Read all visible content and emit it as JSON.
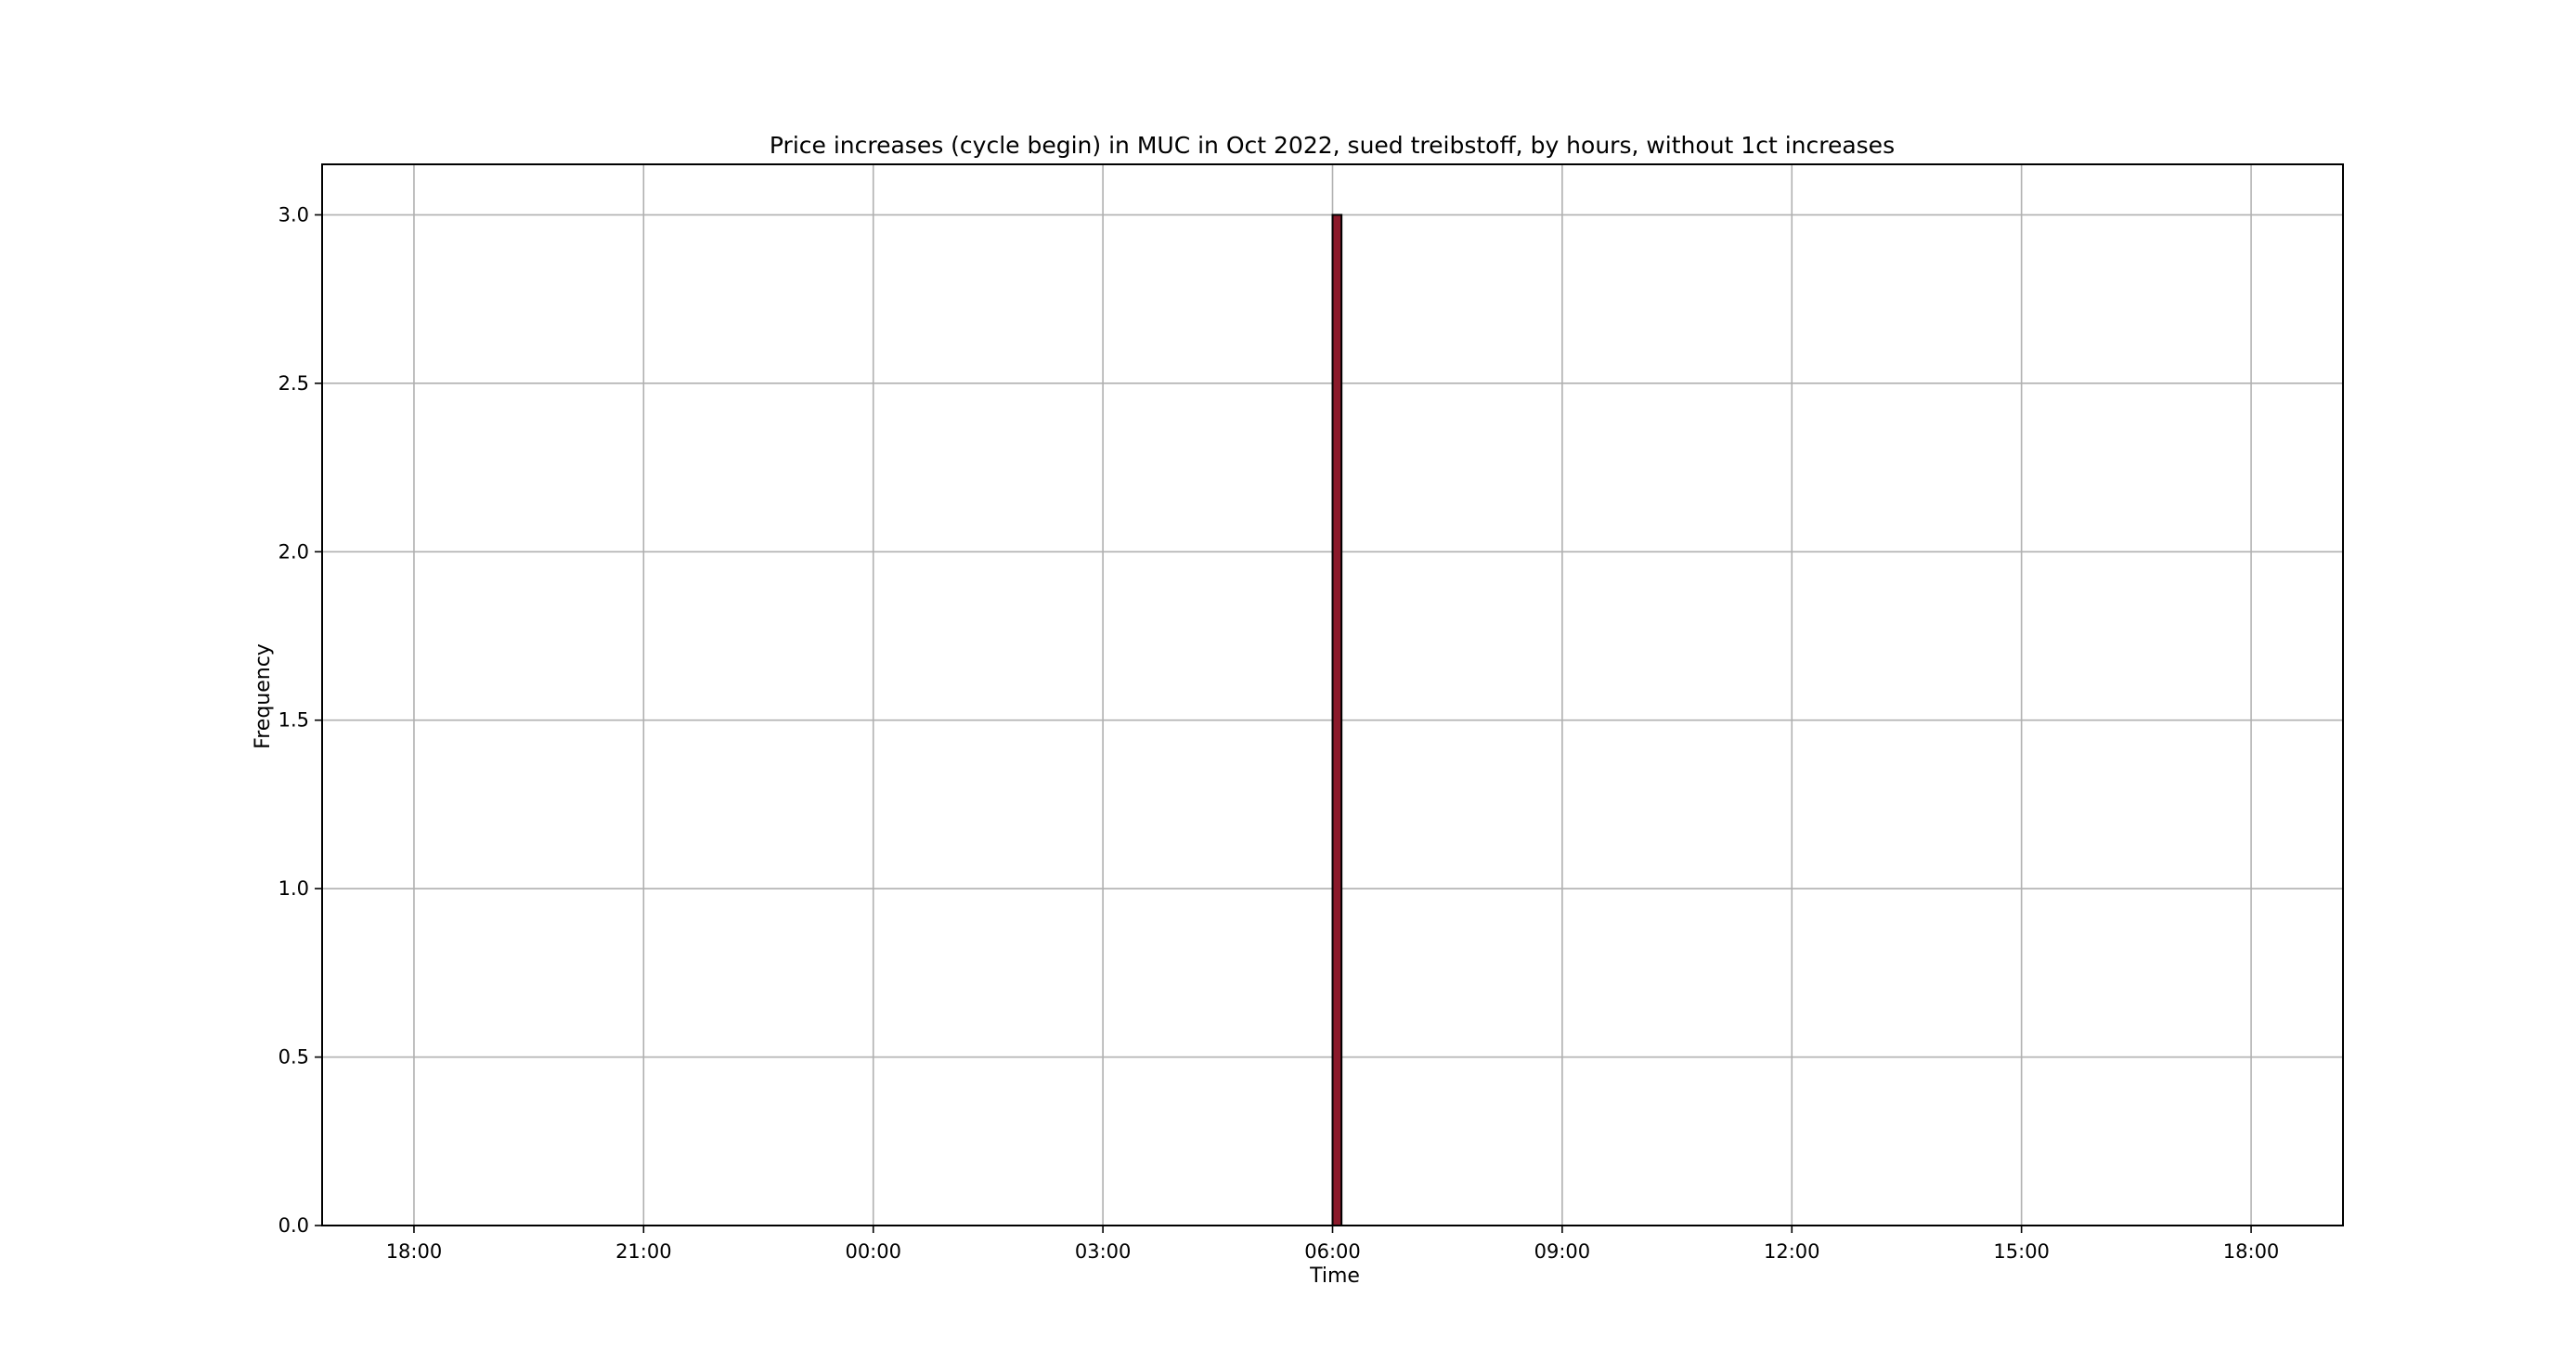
{
  "chart_data": {
    "type": "bar",
    "title": "Price increases (cycle begin) in MUC in Oct 2022, sued treibstoff, by hours, without 1ct increases",
    "xlabel": "Time",
    "ylabel": "Frequency",
    "x_ticks": [
      "18:00",
      "21:00",
      "00:00",
      "03:00",
      "06:00",
      "09:00",
      "12:00",
      "15:00",
      "18:00"
    ],
    "x_tick_hours": [
      -6,
      -3,
      0,
      3,
      6,
      9,
      12,
      15,
      18
    ],
    "xlim_hours": [
      -7.2,
      19.2
    ],
    "y_ticks": [
      "0.0",
      "0.5",
      "1.0",
      "1.5",
      "2.0",
      "2.5",
      "3.0"
    ],
    "ylim": [
      0,
      3.15
    ],
    "grid": true,
    "bars": [
      {
        "start": "06:00",
        "end": "06:07",
        "value": 3
      }
    ],
    "bar_color": "#8b1a2b",
    "bar_edge_color": "#000000"
  }
}
